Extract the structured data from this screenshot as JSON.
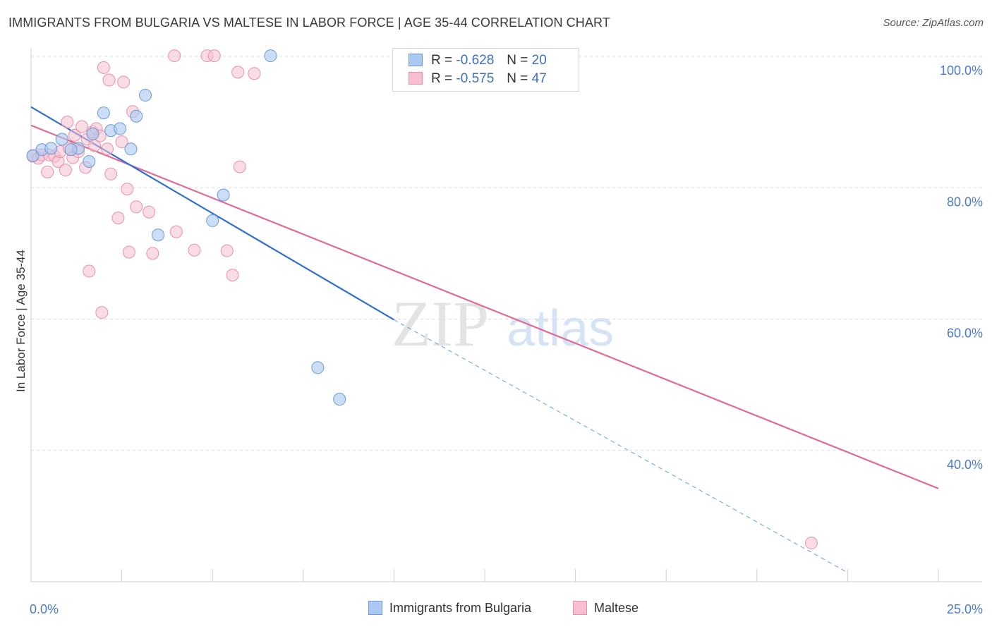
{
  "title": "IMMIGRANTS FROM BULGARIA VS MALTESE IN LABOR FORCE | AGE 35-44 CORRELATION CHART",
  "source": "Source: ZipAtlas.com",
  "watermark": {
    "zip": "ZIP",
    "atlas": "atlas"
  },
  "colors": {
    "blue_fill": "#aac8f0",
    "blue_stroke": "#6a9bd8",
    "blue_line": "#2f6fcf",
    "pink_fill": "#f6bfd0",
    "pink_stroke": "#e890ab",
    "pink_line": "#e06a96",
    "axis_text": "#4a7cc7",
    "grid": "#dddddd"
  },
  "legend": {
    "rows": [
      {
        "r_label": "R =",
        "r_value": "-0.628",
        "n_label": "N =",
        "n_value": "20"
      },
      {
        "r_label": "R =",
        "r_value": "-0.575",
        "n_label": "N =",
        "n_value": "47"
      }
    ]
  },
  "bottom_legend": {
    "series1": "Immigrants from Bulgaria",
    "series2": "Maltese"
  },
  "chart_data": {
    "type": "scatter",
    "title": "IMMIGRANTS FROM BULGARIA VS MALTESE IN LABOR FORCE | AGE 35-44 CORRELATION CHART",
    "xlabel": "",
    "ylabel": "In Labor Force | Age 35-44",
    "xlim": [
      0,
      25
    ],
    "ylim": [
      20,
      100
    ],
    "x_tick_labels": [
      "0.0%",
      "25.0%"
    ],
    "y_ticks": [
      40,
      60,
      80,
      100
    ],
    "y_tick_labels": [
      "40.0%",
      "60.0%",
      "80.0%",
      "100.0%"
    ],
    "series": [
      {
        "name": "Immigrants from Bulgaria",
        "r": -0.628,
        "n": 20,
        "points": [
          [
            0.05,
            84.9
          ],
          [
            0.3,
            85.8
          ],
          [
            0.55,
            86.0
          ],
          [
            0.85,
            87.4
          ],
          [
            1.3,
            86.0
          ],
          [
            1.6,
            84.0
          ],
          [
            1.7,
            88.2
          ],
          [
            2.0,
            91.4
          ],
          [
            2.2,
            88.7
          ],
          [
            2.45,
            89.0
          ],
          [
            2.75,
            85.9
          ],
          [
            2.9,
            90.9
          ],
          [
            3.15,
            94.1
          ],
          [
            3.5,
            72.8
          ],
          [
            5.0,
            75.0
          ],
          [
            5.3,
            78.9
          ],
          [
            6.6,
            100.1
          ],
          [
            7.9,
            52.6
          ],
          [
            8.5,
            47.8
          ],
          [
            1.1,
            85.8
          ]
        ],
        "trend": {
          "x": [
            0,
            10
          ],
          "y": [
            92.3,
            59.9
          ]
        },
        "trend_extension": {
          "x": [
            10,
            22.5
          ],
          "y": [
            59.9,
            21.4
          ]
        }
      },
      {
        "name": "Maltese",
        "r": -0.575,
        "n": 47,
        "points": [
          [
            0.05,
            84.8
          ],
          [
            0.2,
            84.5
          ],
          [
            0.3,
            85.0
          ],
          [
            0.45,
            82.4
          ],
          [
            0.5,
            85.0
          ],
          [
            0.65,
            84.8
          ],
          [
            0.75,
            84.0
          ],
          [
            0.8,
            85.5
          ],
          [
            0.95,
            82.7
          ],
          [
            1.0,
            90.0
          ],
          [
            1.05,
            86.0
          ],
          [
            1.15,
            84.6
          ],
          [
            1.2,
            88.0
          ],
          [
            1.3,
            85.5
          ],
          [
            1.4,
            89.3
          ],
          [
            1.5,
            83.1
          ],
          [
            1.55,
            87.4
          ],
          [
            1.6,
            67.3
          ],
          [
            1.7,
            88.5
          ],
          [
            1.75,
            86.4
          ],
          [
            1.8,
            89.0
          ],
          [
            1.9,
            87.9
          ],
          [
            1.95,
            61.0
          ],
          [
            2.0,
            98.3
          ],
          [
            2.1,
            85.9
          ],
          [
            2.15,
            96.4
          ],
          [
            2.2,
            82.1
          ],
          [
            2.4,
            75.4
          ],
          [
            2.5,
            87.0
          ],
          [
            2.55,
            96.1
          ],
          [
            2.65,
            79.8
          ],
          [
            2.7,
            70.2
          ],
          [
            2.8,
            91.6
          ],
          [
            2.9,
            77.1
          ],
          [
            3.25,
            76.3
          ],
          [
            3.35,
            70.0
          ],
          [
            3.95,
            100.1
          ],
          [
            4.0,
            73.3
          ],
          [
            4.5,
            70.5
          ],
          [
            4.85,
            100.1
          ],
          [
            5.05,
            100.1
          ],
          [
            5.4,
            70.4
          ],
          [
            5.55,
            66.7
          ],
          [
            5.7,
            97.6
          ],
          [
            5.75,
            83.2
          ],
          [
            6.15,
            97.4
          ],
          [
            21.5,
            25.9
          ]
        ],
        "trend": {
          "x": [
            0,
            25
          ],
          "y": [
            89.5,
            34.2
          ]
        }
      }
    ]
  }
}
